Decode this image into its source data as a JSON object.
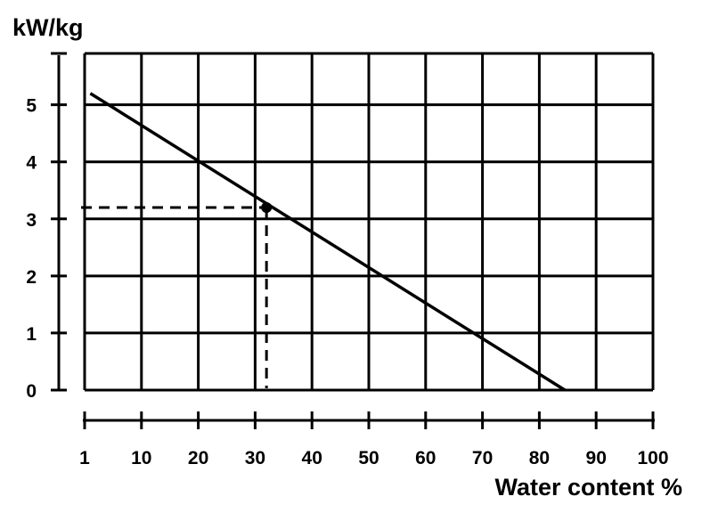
{
  "chart_data": {
    "type": "line",
    "ylabel": "kW/kg",
    "xlabel": "Water content %",
    "x_ticks": [
      "1",
      "10",
      "20",
      "30",
      "40",
      "50",
      "60",
      "70",
      "80",
      "90",
      "100"
    ],
    "y_ticks": [
      "0",
      "1",
      "2",
      "3",
      "4",
      "5"
    ],
    "xlim": [
      0,
      100
    ],
    "ylim": [
      0,
      5.9
    ],
    "grid": true,
    "series": [
      {
        "x": [
          1,
          84.5
        ],
        "y": [
          5.2,
          0
        ]
      }
    ],
    "highlight_point": {
      "x": 32,
      "y": 3.2
    },
    "colors": {
      "line": "#000000",
      "grid": "#000000",
      "background": "#ffffff"
    }
  }
}
